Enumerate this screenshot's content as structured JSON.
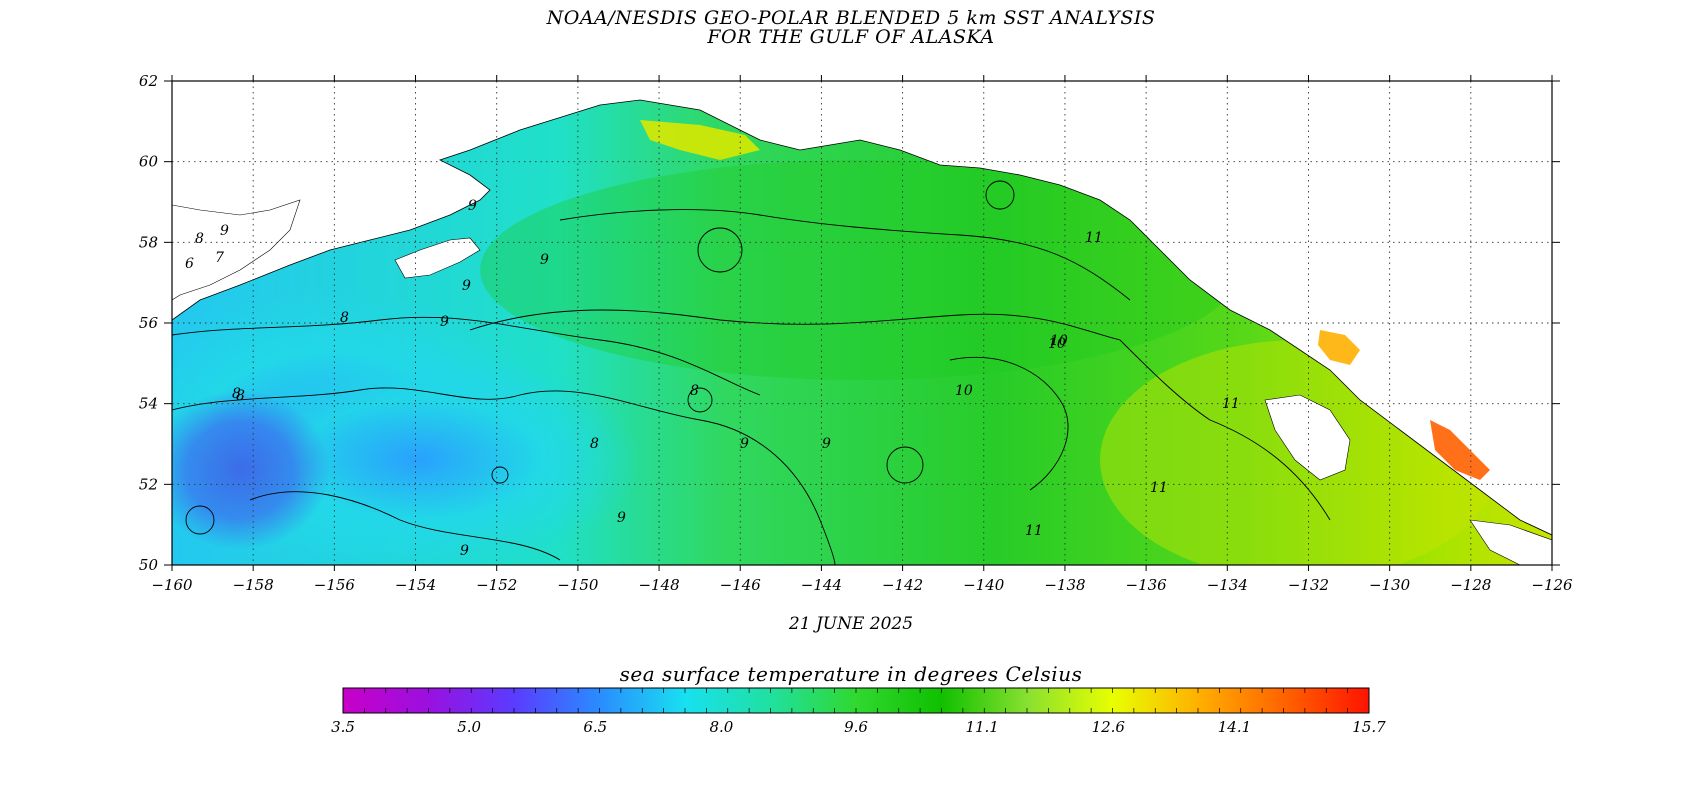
{
  "title": {
    "line1": "NOAA/NESDIS GEO-POLAR BLENDED 5 km SST ANALYSIS",
    "line2": "FOR THE GULF OF ALASKA"
  },
  "date": "21 JUNE 2025",
  "map": {
    "lon_range": [
      -160,
      -126
    ],
    "lat_range": [
      50,
      62
    ],
    "lon_ticks": [
      "-160",
      "-158",
      "-156",
      "-154",
      "-152",
      "-150",
      "-148",
      "-146",
      "-144",
      "-142",
      "-140",
      "-138",
      "-136",
      "-134",
      "-132",
      "-130",
      "-128",
      "-126"
    ],
    "lat_ticks": [
      "62",
      "60",
      "58",
      "56",
      "54",
      "52",
      "50"
    ],
    "contour_labels": [
      "6",
      "7",
      "8",
      "8",
      "8",
      "8",
      "8",
      "8",
      "9",
      "9",
      "9",
      "9",
      "9",
      "9",
      "9",
      "9",
      "9",
      "10",
      "10",
      "10",
      "11",
      "11",
      "11",
      "11"
    ],
    "colors": {
      "land": "#ffffff",
      "cold": "#3c6cf0",
      "cool": "#22d8e8",
      "mid": "#2ed84a",
      "warm": "#c8e400",
      "hot": "#ff4a00"
    }
  },
  "colorbar": {
    "title": "sea surface temperature in degrees Celsius",
    "min": 3.5,
    "max": 15.7,
    "tick_labels": [
      "3.5",
      "5.0",
      "6.5",
      "8.0",
      "9.6",
      "11.1",
      "12.6",
      "14.1",
      "15.7"
    ],
    "stops": [
      "#c800c8",
      "#9a10e0",
      "#5a3cff",
      "#2a8cff",
      "#18e0f0",
      "#20e0a0",
      "#30d830",
      "#10c000",
      "#88e030",
      "#e8ff00",
      "#ffb000",
      "#ff6400",
      "#ff1400"
    ]
  }
}
